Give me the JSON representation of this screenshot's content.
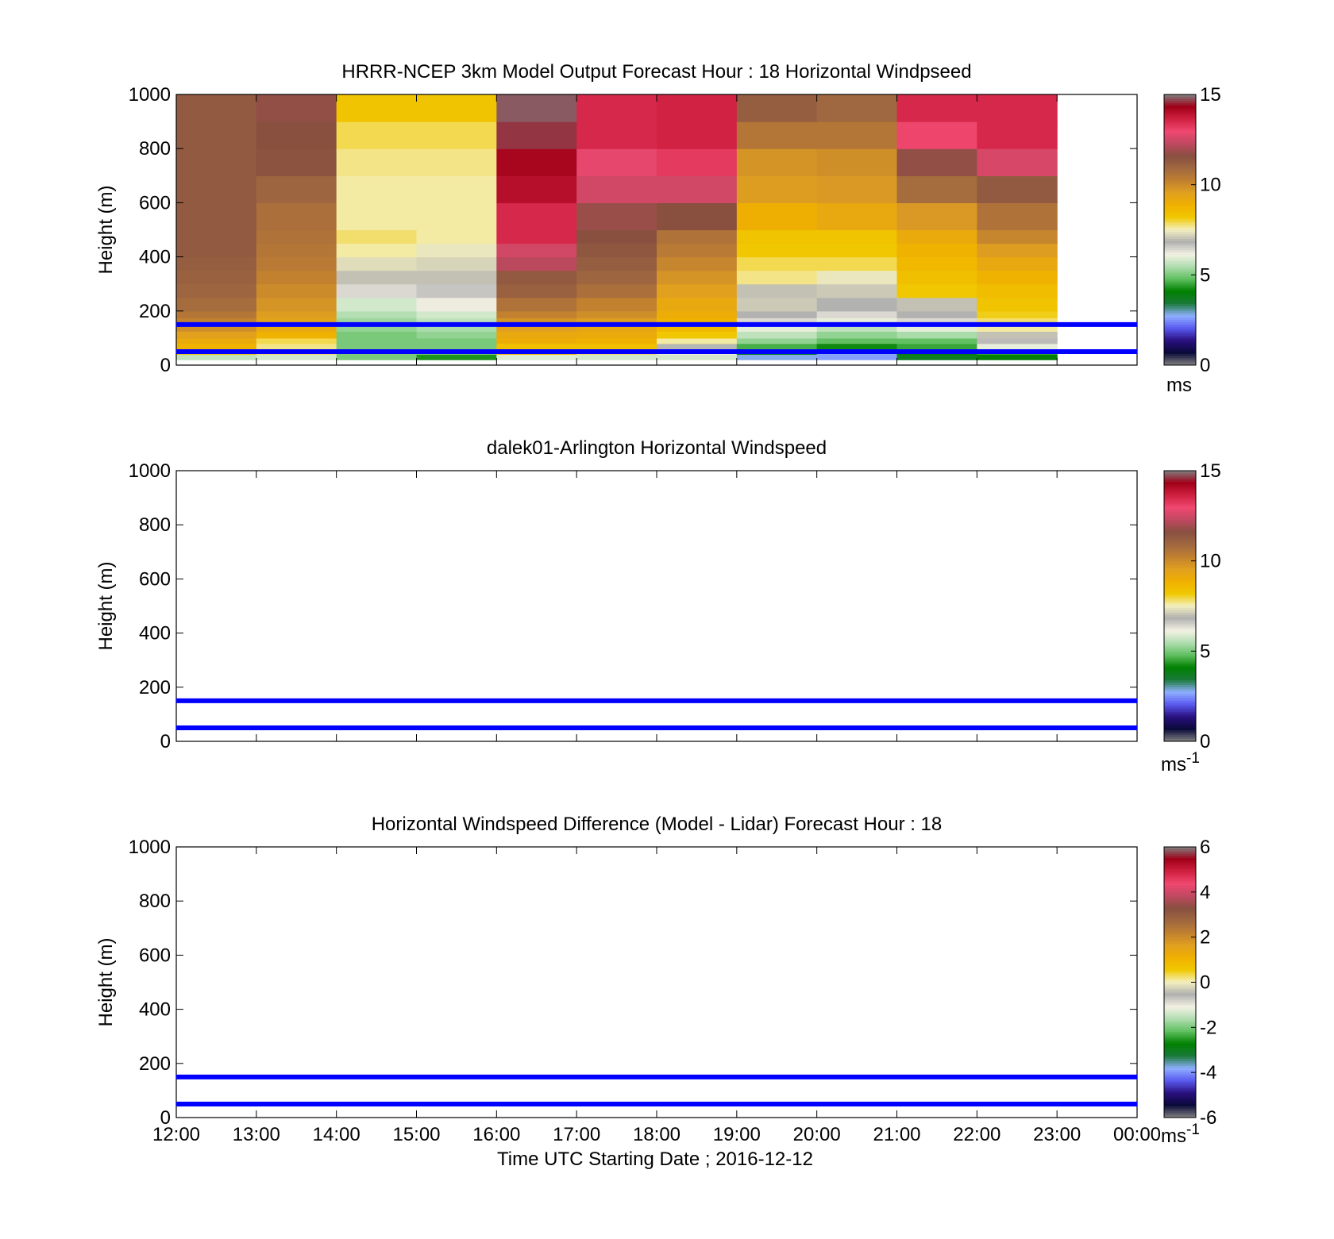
{
  "colors": {
    "reference_line": "#0000ff",
    "speed_scale": [
      "#808080",
      "#0a0a3a",
      "#2a1080",
      "#5a5af0",
      "#8fb0ff",
      "#1a7a3a",
      "#008000",
      "#5fbf5f",
      "#b0ddb0",
      "#f4f2e4",
      "#b0b0b0",
      "#f4f0c0",
      "#f0c800",
      "#f0b000",
      "#e0a020",
      "#c08030",
      "#a06840",
      "#885040",
      "#c04860",
      "#f04870",
      "#d02040",
      "#a00018",
      "#808080"
    ],
    "diff_scale": [
      "#808080",
      "#0a0a3a",
      "#2a1080",
      "#5a5af0",
      "#8fb0ff",
      "#1a7a3a",
      "#008000",
      "#5fbf5f",
      "#b0ddb0",
      "#f4f2e4",
      "#b0b0b0",
      "#f4f0c0",
      "#f0c800",
      "#f0b000",
      "#e0a020",
      "#c08030",
      "#a06840",
      "#885040",
      "#c04860",
      "#f04870",
      "#d02040",
      "#a00018",
      "#808080"
    ]
  },
  "chart_data": [
    {
      "type": "heatmap",
      "title": "HRRR-NCEP 3km Model Output   Forecast Hour : 18 Horizontal Windpseed",
      "xlabel": "",
      "ylabel": "Height (m)",
      "ylim": [
        0,
        1000
      ],
      "xlim": [
        12,
        24
      ],
      "x_ticks": [
        12,
        13,
        14,
        15,
        16,
        17,
        18,
        19,
        20,
        21,
        22,
        23,
        24
      ],
      "y_ticks": [
        0,
        200,
        400,
        600,
        800,
        1000
      ],
      "y_tick_labels": [
        "0",
        "200",
        "400",
        "600",
        "800",
        "1000"
      ],
      "colorbar": {
        "min": 0,
        "max": 15,
        "ticks": [
          0,
          5,
          10,
          15
        ],
        "tick_labels": [
          "0",
          "5",
          "10",
          "15"
        ],
        "units": "ms",
        "superscript": ""
      },
      "reference_lines": [
        150,
        50
      ],
      "levels": [
        [
          20,
          40
        ],
        [
          40,
          60
        ],
        [
          60,
          80
        ],
        [
          80,
          100
        ],
        [
          100,
          125
        ],
        [
          125,
          150
        ],
        [
          150,
          175
        ],
        [
          175,
          200
        ],
        [
          200,
          250
        ],
        [
          250,
          300
        ],
        [
          300,
          350
        ],
        [
          350,
          400
        ],
        [
          400,
          450
        ],
        [
          450,
          500
        ],
        [
          500,
          600
        ],
        [
          600,
          700
        ],
        [
          700,
          800
        ],
        [
          800,
          900
        ],
        [
          900,
          1000
        ]
      ],
      "columns": [
        {
          "x": 12,
          "values": [
            5.6,
            8.2,
            8.8,
            9.1,
            9.5,
            9.9,
            10.2,
            10.5,
            10.8,
            11.0,
            11.1,
            11.2,
            11.3,
            11.3,
            11.3,
            11.3,
            11.3,
            11.3,
            11.3
          ]
        },
        {
          "x": 13,
          "values": [
            5.8,
            7.8,
            7.7,
            7.9,
            8.8,
            9.2,
            9.4,
            9.6,
            9.8,
            10.0,
            10.2,
            10.4,
            10.5,
            10.6,
            10.7,
            11.0,
            11.5,
            11.6,
            11.7
          ]
        },
        {
          "x": 14,
          "values": [
            5.0,
            5.0,
            5.0,
            5.0,
            5.0,
            5.2,
            5.3,
            5.5,
            5.8,
            6.4,
            7.0,
            7.3,
            7.6,
            7.8,
            7.6,
            7.6,
            7.7,
            7.9,
            8.3
          ]
        },
        {
          "x": 15,
          "values": [
            4.3,
            5.0,
            5.0,
            5.0,
            5.2,
            5.4,
            5.6,
            5.8,
            6.2,
            6.6,
            7.0,
            7.2,
            7.4,
            7.6,
            7.6,
            7.6,
            7.7,
            7.9,
            8.3
          ]
        },
        {
          "x": 16,
          "values": [
            5.9,
            8.6,
            8.4,
            9.0,
            9.2,
            9.5,
            9.8,
            10.2,
            10.6,
            11.1,
            11.3,
            12.2,
            12.5,
            13.5,
            13.5,
            14.0,
            14.2,
            14.6,
            14.8
          ]
        },
        {
          "x": 17,
          "values": [
            5.8,
            7.8,
            8.4,
            8.8,
            9.1,
            9.3,
            9.6,
            9.9,
            10.2,
            10.7,
            11.0,
            11.2,
            11.4,
            11.6,
            11.8,
            12.5,
            12.8,
            13.5,
            13.5
          ]
        },
        {
          "x": 18,
          "values": [
            5.8,
            6.2,
            6.9,
            7.6,
            8.2,
            8.6,
            8.8,
            9.0,
            9.2,
            9.5,
            9.8,
            10.1,
            10.4,
            10.6,
            11.6,
            12.5,
            13.2,
            13.6,
            13.6
          ]
        },
        {
          "x": 19,
          "values": [
            2.8,
            3.8,
            4.6,
            5.2,
            5.6,
            6.0,
            6.4,
            6.8,
            7.1,
            7.0,
            7.7,
            7.9,
            8.2,
            8.3,
            8.9,
            9.6,
            9.8,
            10.5,
            11.2
          ]
        },
        {
          "x": 20,
          "values": [
            2.6,
            2.8,
            4.2,
            4.8,
            5.2,
            5.6,
            6.0,
            6.4,
            6.8,
            7.1,
            7.4,
            7.9,
            8.2,
            8.3,
            9.2,
            9.7,
            9.9,
            10.5,
            10.9
          ]
        },
        {
          "x": 21,
          "values": [
            3.7,
            4.0,
            4.5,
            4.8,
            5.4,
            6.0,
            6.4,
            6.8,
            7.0,
            8.2,
            8.4,
            8.6,
            8.8,
            9.1,
            9.7,
            10.8,
            11.7,
            13.0,
            13.5
          ]
        },
        {
          "x": 22,
          "values": [
            4.0,
            4.5,
            6.0,
            6.7,
            7.0,
            7.6,
            7.8,
            8.1,
            8.3,
            8.5,
            8.8,
            9.2,
            9.6,
            10.1,
            10.6,
            11.3,
            12.6,
            13.5,
            13.5
          ]
        }
      ]
    },
    {
      "type": "heatmap",
      "title": "dalek01-Arlington  Horizontal Windspeed",
      "xlabel": "",
      "ylabel": "Height (m)",
      "ylim": [
        0,
        1000
      ],
      "xlim": [
        12,
        24
      ],
      "x_ticks": [
        12,
        13,
        14,
        15,
        16,
        17,
        18,
        19,
        20,
        21,
        22,
        23,
        24
      ],
      "y_ticks": [
        0,
        200,
        400,
        600,
        800,
        1000
      ],
      "y_tick_labels": [
        "0",
        "200",
        "400",
        "600",
        "800",
        "1000"
      ],
      "colorbar": {
        "min": 0,
        "max": 15,
        "ticks": [
          0,
          5,
          10,
          15
        ],
        "tick_labels": [
          "0",
          "5",
          "10",
          "15"
        ],
        "units": "ms",
        "superscript": "-1"
      },
      "reference_lines": [
        150,
        50
      ],
      "levels": [],
      "columns": []
    },
    {
      "type": "heatmap",
      "title": "Horizontal Windspeed Difference (Model - Lidar) Forecast Hour : 18",
      "xlabel": "Time UTC  Starting Date ; 2016-12-12",
      "ylabel": "Height (m)",
      "ylim": [
        0,
        1000
      ],
      "xlim": [
        12,
        24
      ],
      "x_ticks": [
        12,
        13,
        14,
        15,
        16,
        17,
        18,
        19,
        20,
        21,
        22,
        23,
        24
      ],
      "x_tick_labels": [
        "12:00",
        "13:00",
        "14:00",
        "15:00",
        "16:00",
        "17:00",
        "18:00",
        "19:00",
        "20:00",
        "21:00",
        "22:00",
        "23:00",
        "00:00"
      ],
      "y_ticks": [
        0,
        200,
        400,
        600,
        800,
        1000
      ],
      "y_tick_labels": [
        "0",
        "200",
        "400",
        "600",
        "800",
        "1000"
      ],
      "colorbar": {
        "min": -6,
        "max": 6,
        "ticks": [
          -6,
          -4,
          -2,
          0,
          2,
          4,
          6
        ],
        "tick_labels": [
          "-6",
          "-4",
          "-2",
          "0",
          "2",
          "4",
          "6"
        ],
        "units": "ms",
        "superscript": "-1"
      },
      "reference_lines": [
        150,
        50
      ],
      "levels": [],
      "columns": []
    }
  ]
}
